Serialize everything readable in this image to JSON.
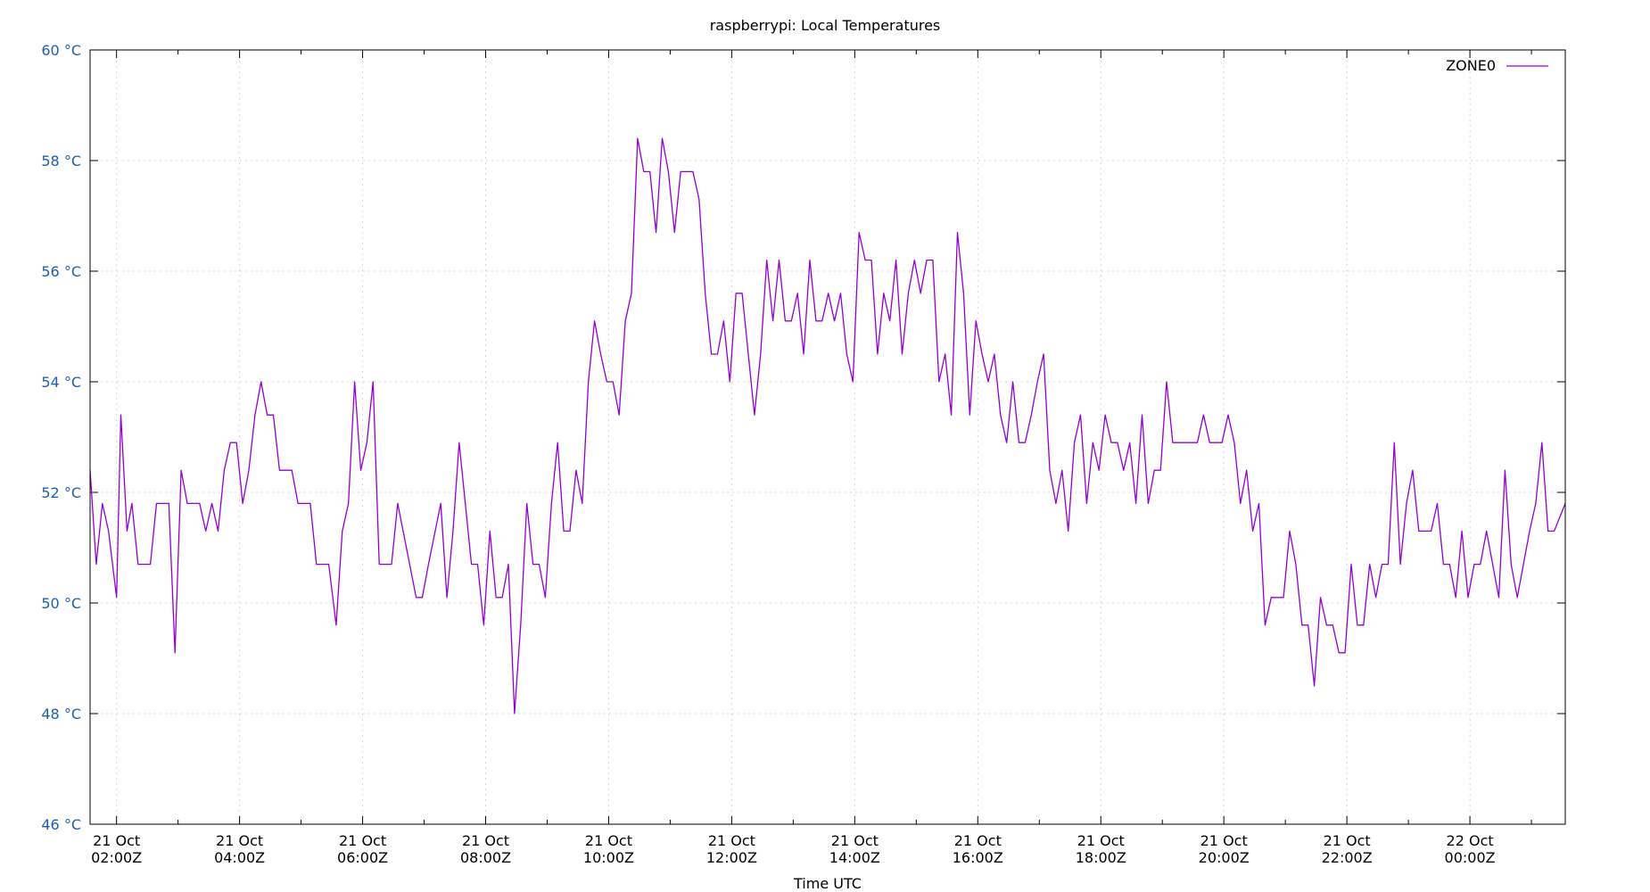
{
  "chart_data": {
    "type": "line",
    "title": "raspberrypi: Local Temperatures",
    "xlabel": "Time UTC",
    "ylabel": "",
    "ylim": [
      46,
      60
    ],
    "xlim_hours": [
      1.57,
      25.55
    ],
    "grid": true,
    "legend_position": "top-right",
    "y_ticks": [
      {
        "value": 46,
        "label": "46 °C"
      },
      {
        "value": 48,
        "label": "48 °C"
      },
      {
        "value": 50,
        "label": "50 °C"
      },
      {
        "value": 52,
        "label": "52 °C"
      },
      {
        "value": 54,
        "label": "54 °C"
      },
      {
        "value": 56,
        "label": "56 °C"
      },
      {
        "value": 58,
        "label": "58 °C"
      },
      {
        "value": 60,
        "label": "60 °C"
      }
    ],
    "x_ticks": [
      {
        "hour": 2,
        "line1": "21 Oct",
        "line2": "02:00Z"
      },
      {
        "hour": 4,
        "line1": "21 Oct",
        "line2": "04:00Z"
      },
      {
        "hour": 6,
        "line1": "21 Oct",
        "line2": "06:00Z"
      },
      {
        "hour": 8,
        "line1": "21 Oct",
        "line2": "08:00Z"
      },
      {
        "hour": 10,
        "line1": "21 Oct",
        "line2": "10:00Z"
      },
      {
        "hour": 12,
        "line1": "21 Oct",
        "line2": "12:00Z"
      },
      {
        "hour": 14,
        "line1": "21 Oct",
        "line2": "14:00Z"
      },
      {
        "hour": 16,
        "line1": "21 Oct",
        "line2": "16:00Z"
      },
      {
        "hour": 18,
        "line1": "21 Oct",
        "line2": "18:00Z"
      },
      {
        "hour": 20,
        "line1": "21 Oct",
        "line2": "20:00Z"
      },
      {
        "hour": 22,
        "line1": "21 Oct",
        "line2": "22:00Z"
      },
      {
        "hour": 24,
        "line1": "22 Oct",
        "line2": "00:00Z"
      }
    ],
    "series": [
      {
        "name": "ZONE0",
        "color": "#9400d3",
        "points": [
          [
            1.57,
            52.4
          ],
          [
            1.67,
            50.7
          ],
          [
            1.77,
            51.8
          ],
          [
            1.87,
            51.3
          ],
          [
            2.0,
            50.1
          ],
          [
            2.07,
            53.4
          ],
          [
            2.17,
            51.3
          ],
          [
            2.25,
            51.8
          ],
          [
            2.35,
            50.7
          ],
          [
            2.55,
            50.7
          ],
          [
            2.65,
            51.8
          ],
          [
            2.85,
            51.8
          ],
          [
            2.95,
            49.1
          ],
          [
            3.05,
            52.4
          ],
          [
            3.15,
            51.8
          ],
          [
            3.35,
            51.8
          ],
          [
            3.45,
            51.3
          ],
          [
            3.55,
            51.8
          ],
          [
            3.65,
            51.3
          ],
          [
            3.75,
            52.4
          ],
          [
            3.85,
            52.9
          ],
          [
            3.95,
            52.9
          ],
          [
            4.05,
            51.8
          ],
          [
            4.15,
            52.4
          ],
          [
            4.25,
            53.4
          ],
          [
            4.35,
            54.0
          ],
          [
            4.45,
            53.4
          ],
          [
            4.55,
            53.4
          ],
          [
            4.65,
            52.4
          ],
          [
            4.85,
            52.4
          ],
          [
            4.95,
            51.8
          ],
          [
            5.15,
            51.8
          ],
          [
            5.25,
            50.7
          ],
          [
            5.45,
            50.7
          ],
          [
            5.57,
            49.6
          ],
          [
            5.67,
            51.3
          ],
          [
            5.77,
            51.8
          ],
          [
            5.87,
            54.0
          ],
          [
            5.97,
            52.4
          ],
          [
            6.07,
            52.9
          ],
          [
            6.17,
            54.0
          ],
          [
            6.27,
            50.7
          ],
          [
            6.47,
            50.7
          ],
          [
            6.57,
            51.8
          ],
          [
            6.87,
            50.1
          ],
          [
            6.97,
            50.1
          ],
          [
            7.07,
            50.7
          ],
          [
            7.27,
            51.8
          ],
          [
            7.37,
            50.1
          ],
          [
            7.47,
            51.3
          ],
          [
            7.57,
            52.9
          ],
          [
            7.67,
            51.8
          ],
          [
            7.77,
            50.7
          ],
          [
            7.87,
            50.7
          ],
          [
            7.97,
            49.6
          ],
          [
            8.07,
            51.3
          ],
          [
            8.17,
            50.1
          ],
          [
            8.27,
            50.1
          ],
          [
            8.37,
            50.7
          ],
          [
            8.47,
            48.0
          ],
          [
            8.57,
            49.6
          ],
          [
            8.67,
            51.8
          ],
          [
            8.77,
            50.7
          ],
          [
            8.87,
            50.7
          ],
          [
            8.97,
            50.1
          ],
          [
            9.07,
            51.8
          ],
          [
            9.17,
            52.9
          ],
          [
            9.27,
            51.3
          ],
          [
            9.37,
            51.3
          ],
          [
            9.47,
            52.4
          ],
          [
            9.57,
            51.8
          ],
          [
            9.67,
            54.0
          ],
          [
            9.77,
            55.1
          ],
          [
            9.87,
            54.5
          ],
          [
            9.97,
            54.0
          ],
          [
            10.07,
            54.0
          ],
          [
            10.17,
            53.4
          ],
          [
            10.27,
            55.1
          ],
          [
            10.37,
            55.6
          ],
          [
            10.47,
            58.4
          ],
          [
            10.57,
            57.8
          ],
          [
            10.67,
            57.8
          ],
          [
            10.77,
            56.7
          ],
          [
            10.87,
            58.4
          ],
          [
            10.97,
            57.8
          ],
          [
            11.07,
            56.7
          ],
          [
            11.17,
            57.8
          ],
          [
            11.37,
            57.8
          ],
          [
            11.47,
            57.3
          ],
          [
            11.57,
            55.6
          ],
          [
            11.67,
            54.5
          ],
          [
            11.77,
            54.5
          ],
          [
            11.87,
            55.1
          ],
          [
            11.97,
            54.0
          ],
          [
            12.07,
            55.6
          ],
          [
            12.17,
            55.6
          ],
          [
            12.27,
            54.5
          ],
          [
            12.37,
            53.4
          ],
          [
            12.47,
            54.5
          ],
          [
            12.57,
            56.2
          ],
          [
            12.67,
            55.1
          ],
          [
            12.77,
            56.2
          ],
          [
            12.87,
            55.1
          ],
          [
            12.97,
            55.1
          ],
          [
            13.07,
            55.6
          ],
          [
            13.17,
            54.5
          ],
          [
            13.27,
            56.2
          ],
          [
            13.37,
            55.1
          ],
          [
            13.47,
            55.1
          ],
          [
            13.57,
            55.6
          ],
          [
            13.67,
            55.1
          ],
          [
            13.77,
            55.6
          ],
          [
            13.87,
            54.5
          ],
          [
            13.97,
            54.0
          ],
          [
            14.07,
            56.7
          ],
          [
            14.17,
            56.2
          ],
          [
            14.27,
            56.2
          ],
          [
            14.37,
            54.5
          ],
          [
            14.47,
            55.6
          ],
          [
            14.57,
            55.1
          ],
          [
            14.67,
            56.2
          ],
          [
            14.77,
            54.5
          ],
          [
            14.87,
            55.6
          ],
          [
            14.97,
            56.2
          ],
          [
            15.07,
            55.6
          ],
          [
            15.17,
            56.2
          ],
          [
            15.27,
            56.2
          ],
          [
            15.37,
            54.0
          ],
          [
            15.47,
            54.5
          ],
          [
            15.57,
            53.4
          ],
          [
            15.67,
            56.7
          ],
          [
            15.77,
            55.6
          ],
          [
            15.87,
            53.4
          ],
          [
            15.97,
            55.1
          ],
          [
            16.07,
            54.5
          ],
          [
            16.17,
            54.0
          ],
          [
            16.27,
            54.5
          ],
          [
            16.37,
            53.4
          ],
          [
            16.47,
            52.9
          ],
          [
            16.57,
            54.0
          ],
          [
            16.67,
            52.9
          ],
          [
            16.77,
            52.9
          ],
          [
            16.87,
            53.4
          ],
          [
            16.97,
            54.0
          ],
          [
            17.07,
            54.5
          ],
          [
            17.17,
            52.4
          ],
          [
            17.27,
            51.8
          ],
          [
            17.37,
            52.4
          ],
          [
            17.47,
            51.3
          ],
          [
            17.57,
            52.9
          ],
          [
            17.67,
            53.4
          ],
          [
            17.77,
            51.8
          ],
          [
            17.87,
            52.9
          ],
          [
            17.97,
            52.4
          ],
          [
            18.07,
            53.4
          ],
          [
            18.17,
            52.9
          ],
          [
            18.27,
            52.9
          ],
          [
            18.37,
            52.4
          ],
          [
            18.47,
            52.9
          ],
          [
            18.57,
            51.8
          ],
          [
            18.67,
            53.4
          ],
          [
            18.77,
            51.8
          ],
          [
            18.87,
            52.4
          ],
          [
            18.97,
            52.4
          ],
          [
            19.07,
            54.0
          ],
          [
            19.17,
            52.9
          ],
          [
            19.57,
            52.9
          ],
          [
            19.67,
            53.4
          ],
          [
            19.77,
            52.9
          ],
          [
            19.97,
            52.9
          ],
          [
            20.07,
            53.4
          ],
          [
            20.17,
            52.9
          ],
          [
            20.27,
            51.8
          ],
          [
            20.37,
            52.4
          ],
          [
            20.47,
            51.3
          ],
          [
            20.57,
            51.8
          ],
          [
            20.67,
            49.6
          ],
          [
            20.77,
            50.1
          ],
          [
            20.97,
            50.1
          ],
          [
            21.07,
            51.3
          ],
          [
            21.17,
            50.7
          ],
          [
            21.27,
            49.6
          ],
          [
            21.37,
            49.6
          ],
          [
            21.47,
            48.5
          ],
          [
            21.57,
            50.1
          ],
          [
            21.67,
            49.6
          ],
          [
            21.77,
            49.6
          ],
          [
            21.87,
            49.1
          ],
          [
            21.97,
            49.1
          ],
          [
            22.07,
            50.7
          ],
          [
            22.17,
            49.6
          ],
          [
            22.27,
            49.6
          ],
          [
            22.37,
            50.7
          ],
          [
            22.47,
            50.1
          ],
          [
            22.57,
            50.7
          ],
          [
            22.67,
            50.7
          ],
          [
            22.77,
            52.9
          ],
          [
            22.87,
            50.7
          ],
          [
            22.97,
            51.8
          ],
          [
            23.07,
            52.4
          ],
          [
            23.17,
            51.3
          ],
          [
            23.37,
            51.3
          ],
          [
            23.47,
            51.8
          ],
          [
            23.57,
            50.7
          ],
          [
            23.67,
            50.7
          ],
          [
            23.77,
            50.1
          ],
          [
            23.87,
            51.3
          ],
          [
            23.97,
            50.1
          ],
          [
            24.07,
            50.7
          ],
          [
            24.17,
            50.7
          ],
          [
            24.27,
            51.3
          ],
          [
            24.37,
            50.7
          ],
          [
            24.47,
            50.1
          ],
          [
            24.57,
            52.4
          ],
          [
            24.67,
            50.7
          ],
          [
            24.77,
            50.1
          ],
          [
            24.87,
            50.7
          ],
          [
            24.97,
            51.3
          ],
          [
            25.07,
            51.8
          ],
          [
            25.17,
            52.9
          ],
          [
            25.27,
            51.3
          ],
          [
            25.37,
            51.3
          ],
          [
            25.55,
            51.8
          ]
        ]
      }
    ]
  },
  "colors": {
    "ytick_text": "#1f5fa8",
    "grid": "#d8d8d8",
    "border": "#000000"
  }
}
